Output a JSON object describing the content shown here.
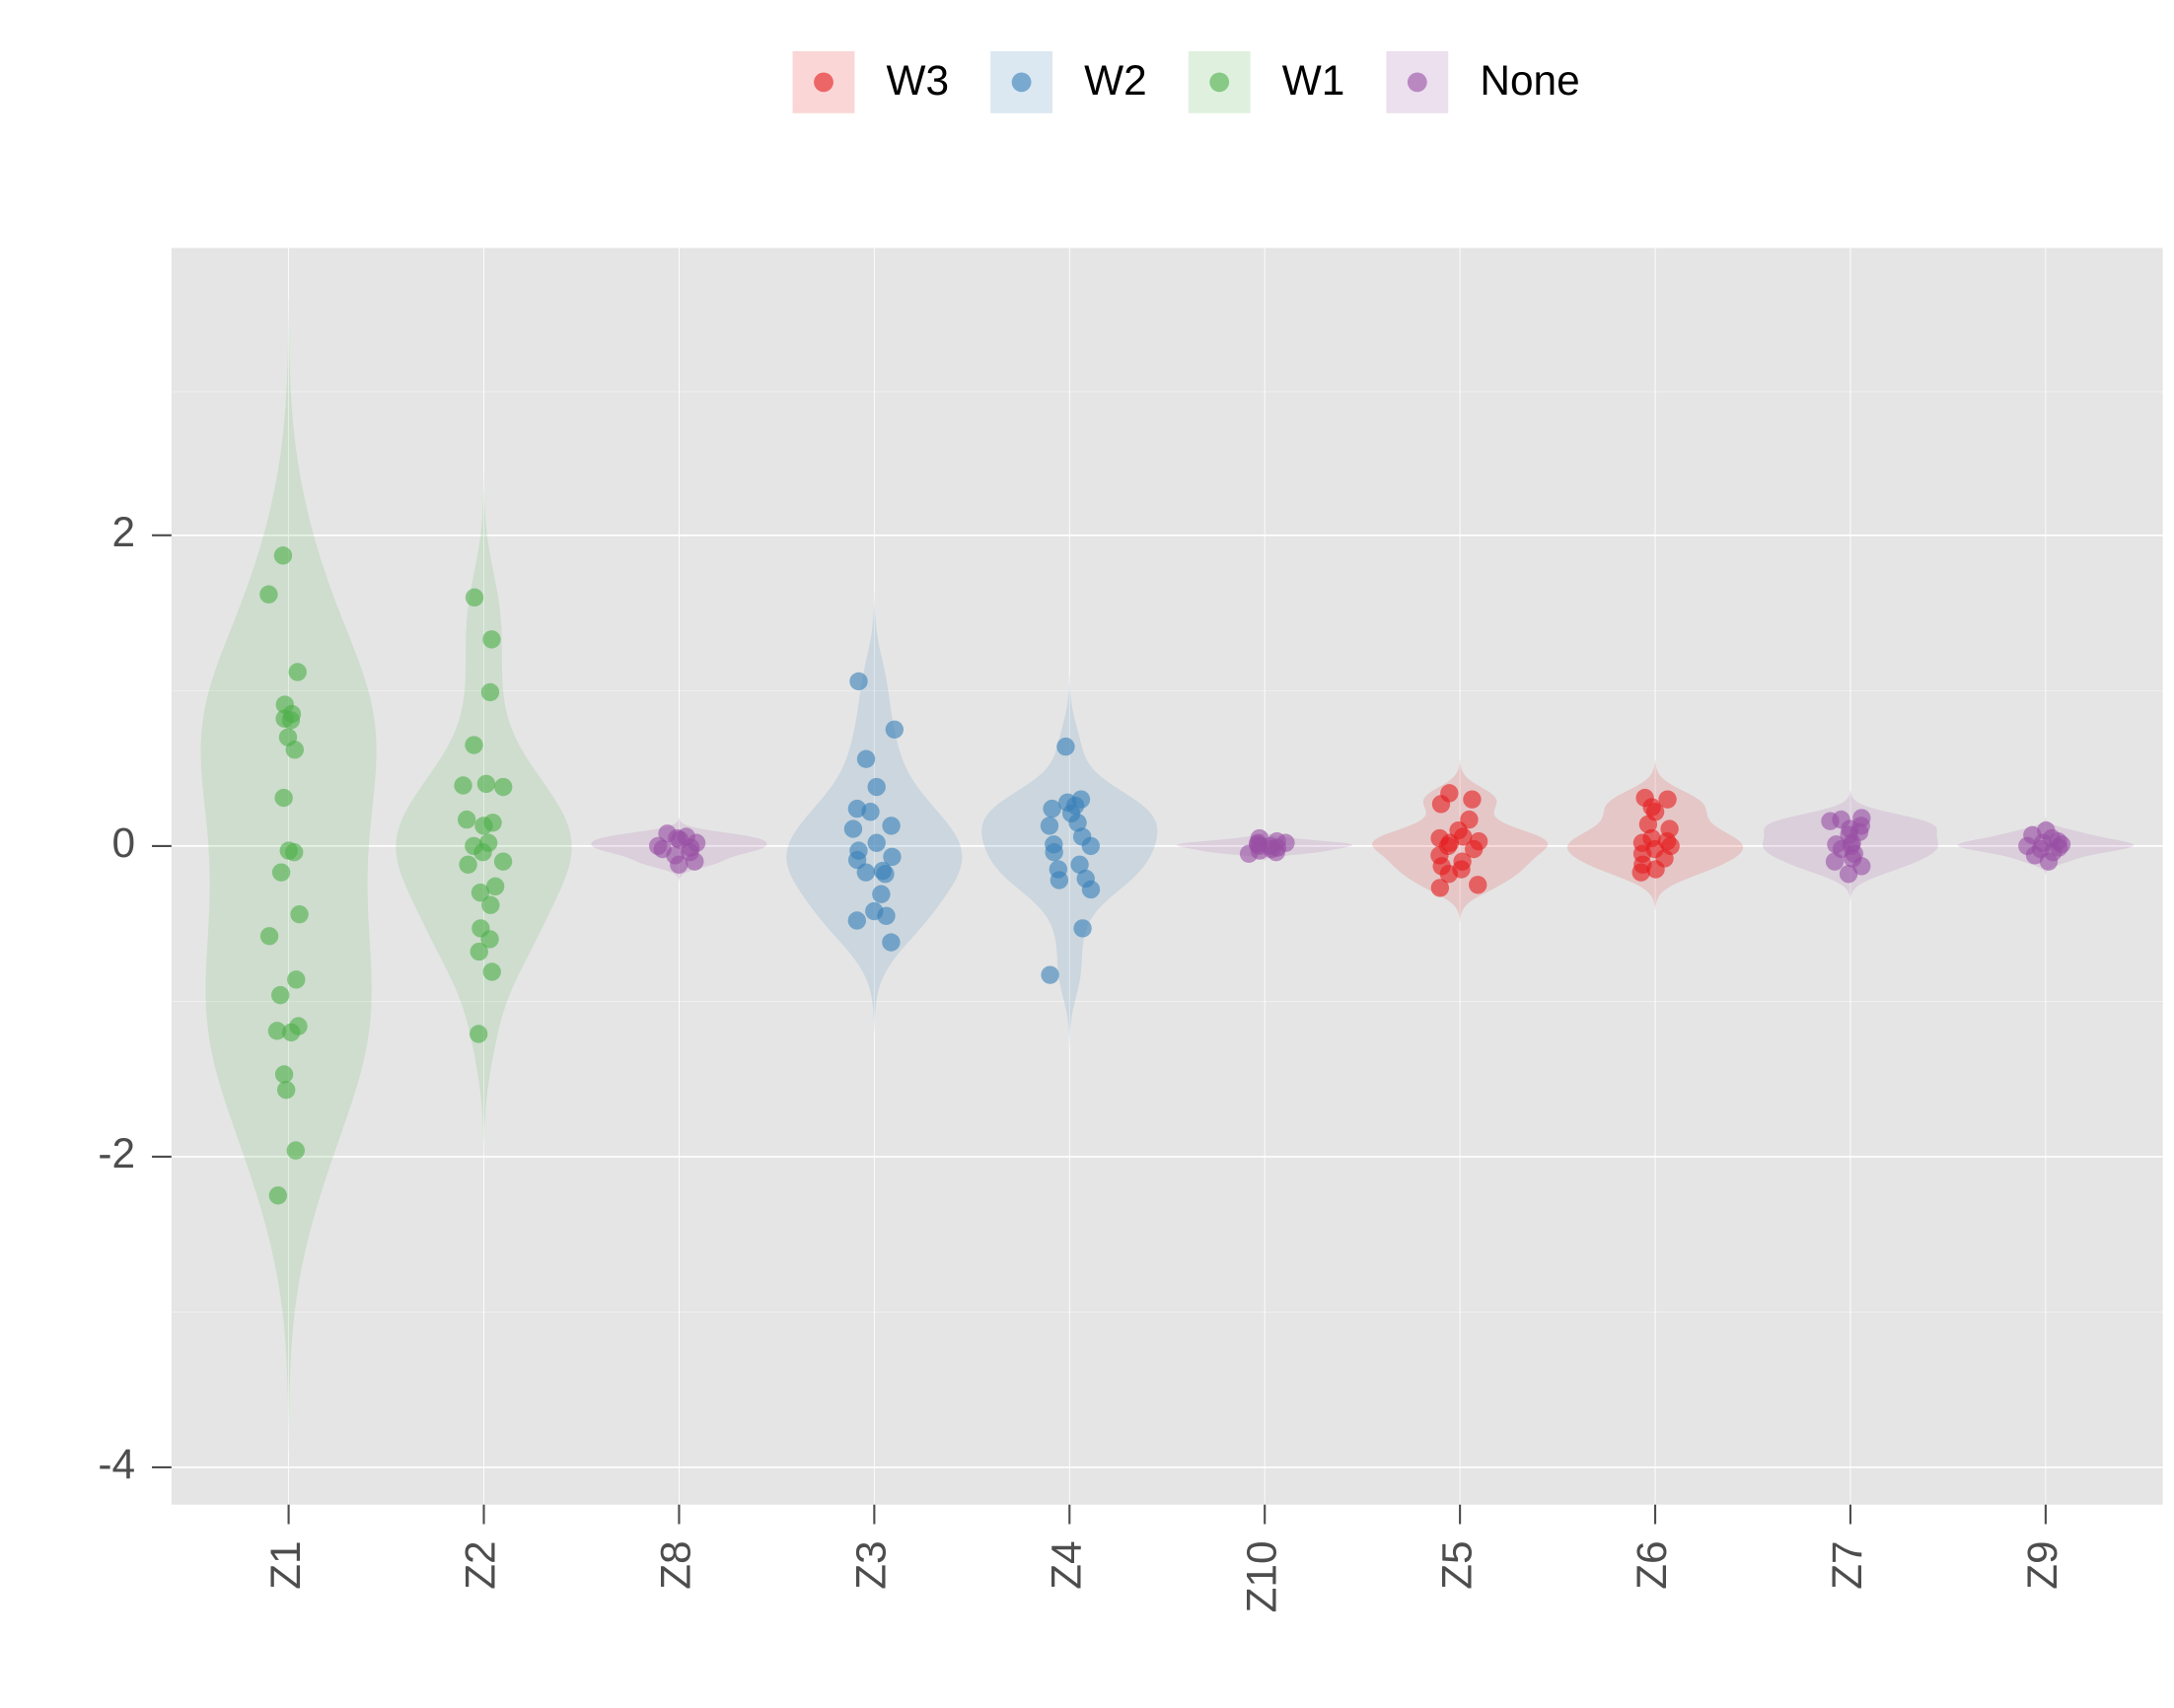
{
  "chart_data": {
    "type": "violin",
    "legend": "top",
    "series": [
      {
        "name": "W3",
        "color": "#e41a1c"
      },
      {
        "name": "W2",
        "color": "#377eb8"
      },
      {
        "name": "W1",
        "color": "#4daf4a"
      },
      {
        "name": "None",
        "color": "#984ea3"
      }
    ],
    "categories": [
      "Z1",
      "Z2",
      "Z8",
      "Z3",
      "Z4",
      "Z10",
      "Z5",
      "Z6",
      "Z7",
      "Z9"
    ],
    "groups": [
      "W1",
      "W1",
      "None",
      "W2",
      "W2",
      "None",
      "W3",
      "W3",
      "None",
      "None"
    ],
    "values": [
      [
        1.87,
        1.62,
        1.12,
        0.91,
        0.85,
        0.82,
        0.81,
        0.7,
        0.62,
        0.31,
        -0.03,
        -0.04,
        -0.17,
        -0.44,
        -0.58,
        -0.86,
        -0.96,
        -1.16,
        -1.19,
        -1.2,
        -1.47,
        -1.57,
        -1.96,
        -2.25
      ],
      [
        1.6,
        1.33,
        0.99,
        0.65,
        0.4,
        0.39,
        0.38,
        0.17,
        0.15,
        0.13,
        0.02,
        0,
        -0.04,
        -0.1,
        -0.12,
        -0.26,
        -0.3,
        -0.38,
        -0.53,
        -0.6,
        -0.68,
        -0.81,
        -1.21
      ],
      [
        0.08,
        0.06,
        0.05,
        0.04,
        0.02,
        0,
        -0.01,
        -0.02,
        -0.04,
        -0.06,
        -0.1,
        -0.12
      ],
      [
        1.06,
        0.75,
        0.56,
        0.38,
        0.24,
        0.22,
        0.13,
        0.11,
        0.02,
        -0.03,
        -0.07,
        -0.09,
        -0.16,
        -0.17,
        -0.18,
        -0.31,
        -0.42,
        -0.45,
        -0.48,
        -0.62
      ],
      [
        0.64,
        0.3,
        0.28,
        0.26,
        0.24,
        0.21,
        0.15,
        0.13,
        0.06,
        0.01,
        0,
        -0.04,
        -0.12,
        -0.15,
        -0.21,
        -0.22,
        -0.28,
        -0.53,
        -0.83
      ],
      [
        0.05,
        0.03,
        0.02,
        0.02,
        0.01,
        0,
        0,
        -0.01,
        -0.02,
        -0.03,
        -0.04,
        -0.05
      ],
      [
        0.34,
        0.3,
        0.27,
        0.17,
        0.1,
        0.06,
        0.05,
        0.03,
        0.02,
        0,
        -0.02,
        -0.06,
        -0.1,
        -0.13,
        -0.15,
        -0.18,
        -0.25,
        -0.27
      ],
      [
        0.31,
        0.3,
        0.25,
        0.22,
        0.14,
        0.11,
        0.05,
        0.03,
        0.02,
        0,
        -0.02,
        -0.05,
        -0.08,
        -0.12,
        -0.15,
        -0.17
      ],
      [
        0.18,
        0.17,
        0.16,
        0.13,
        0.11,
        0.09,
        0.07,
        0.02,
        0.01,
        0,
        -0.02,
        -0.05,
        -0.08,
        -0.1,
        -0.13,
        -0.18
      ],
      [
        0.1,
        0.07,
        0.05,
        0.03,
        0.02,
        0.01,
        0,
        -0.01,
        -0.02,
        -0.04,
        -0.06,
        -0.1
      ]
    ],
    "ylim": [
      -4.24,
      3.85
    ],
    "yticks": [
      -4,
      -2,
      0,
      2
    ],
    "grid": true
  }
}
